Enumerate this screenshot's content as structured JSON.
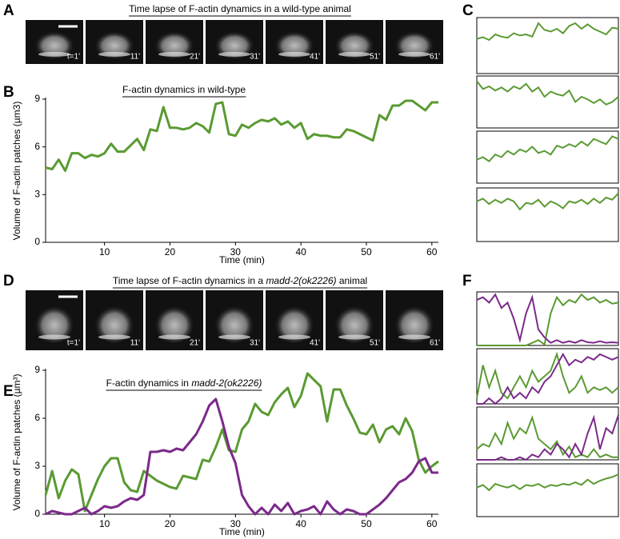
{
  "labels": [
    "A",
    "B",
    "C",
    "D",
    "E",
    "F"
  ],
  "strip_a": {
    "title": [
      "Time lapse of F-actin dynamics in a wild-type animal"
    ],
    "times": [
      "t=1'",
      "11'",
      "21'",
      "31'",
      "41'",
      "51'",
      "61'"
    ]
  },
  "strip_d": {
    "title": [
      "Time lapse of F-actin dynamics in a ",
      "madd-2(ok2226)",
      " animal"
    ],
    "times": [
      "t=1'",
      "11'",
      "21'",
      "31'",
      "41'",
      "51'",
      "61'"
    ]
  },
  "chart_data": [
    {
      "type": "line",
      "title": [
        "F-actin dynamics in wild-type"
      ],
      "xlabel": "Time (min)",
      "ylabel": "Volume of F-actin patches (µm3)",
      "x": [
        1,
        2,
        3,
        4,
        5,
        6,
        7,
        8,
        9,
        10,
        11,
        12,
        13,
        14,
        15,
        16,
        17,
        18,
        19,
        20,
        21,
        22,
        23,
        24,
        25,
        26,
        27,
        28,
        29,
        30,
        31,
        32,
        33,
        34,
        35,
        36,
        37,
        38,
        39,
        40,
        41,
        42,
        43,
        44,
        45,
        46,
        47,
        48,
        49,
        50,
        51,
        52,
        53,
        54,
        55,
        56,
        57,
        58,
        59,
        60,
        61
      ],
      "series": [
        {
          "color": "#5a9a32",
          "values": [
            4.7,
            4.6,
            5.2,
            4.5,
            5.6,
            5.6,
            5.3,
            5.5,
            5.4,
            5.6,
            6.2,
            5.7,
            5.7,
            6.1,
            6.5,
            5.8,
            7.1,
            7.0,
            8.5,
            7.2,
            7.2,
            7.1,
            7.2,
            7.5,
            7.3,
            6.9,
            8.7,
            8.8,
            6.8,
            6.7,
            7.4,
            7.2,
            7.5,
            7.7,
            7.6,
            7.8,
            7.4,
            7.6,
            7.2,
            7.5,
            6.5,
            6.8,
            6.7,
            6.7,
            6.6,
            6.6,
            7.1,
            7.0,
            6.8,
            6.6,
            6.4,
            8.0,
            7.7,
            8.6,
            8.6,
            8.9,
            8.9,
            8.6,
            8.3,
            8.8,
            8.8
          ]
        }
      ],
      "xlim": [
        1,
        61
      ],
      "xticks": [
        10,
        20,
        30,
        40,
        50,
        60
      ],
      "ylim": [
        0,
        9
      ],
      "yticks": [
        0,
        3,
        6,
        9
      ]
    },
    {
      "type": "line",
      "title": [
        "F-actin dynamics in ",
        "madd-2(ok2226)"
      ],
      "xlabel": "Time (min)",
      "ylabel": "Volume of F-actin patches (µm³)",
      "x": [
        1,
        2,
        3,
        4,
        5,
        6,
        7,
        8,
        9,
        10,
        11,
        12,
        13,
        14,
        15,
        16,
        17,
        18,
        19,
        20,
        21,
        22,
        23,
        24,
        25,
        26,
        27,
        28,
        29,
        30,
        31,
        32,
        33,
        34,
        35,
        36,
        37,
        38,
        39,
        40,
        41,
        42,
        43,
        44,
        45,
        46,
        47,
        48,
        49,
        50,
        51,
        52,
        53,
        54,
        55,
        56,
        57,
        58,
        59,
        60,
        61
      ],
      "series": [
        {
          "color": "#5a9a32",
          "values": [
            1.2,
            2.7,
            1.0,
            2.1,
            2.8,
            2.5,
            0.2,
            1.2,
            2.2,
            3.0,
            3.5,
            3.5,
            2.0,
            1.5,
            1.4,
            2.7,
            2.4,
            2.1,
            1.9,
            1.7,
            1.6,
            2.4,
            2.3,
            2.2,
            3.4,
            3.3,
            4.2,
            5.3,
            4.0,
            3.9,
            5.3,
            5.8,
            6.9,
            6.4,
            6.2,
            7.0,
            7.5,
            7.9,
            6.7,
            7.4,
            8.8,
            8.4,
            8.0,
            5.8,
            7.8,
            7.8,
            6.8,
            6.0,
            5.1,
            5.0,
            5.6,
            4.5,
            5.3,
            5.5,
            5.0,
            6.0,
            5.2,
            3.4,
            2.6,
            3.0,
            3.3
          ]
        },
        {
          "color": "#7b2a8a",
          "values": [
            0.0,
            0.2,
            0.1,
            0.0,
            0.0,
            0.2,
            0.4,
            0.0,
            0.2,
            0.5,
            0.4,
            0.5,
            0.8,
            1.0,
            0.9,
            1.2,
            3.9,
            3.9,
            4.0,
            3.9,
            4.1,
            4.0,
            4.5,
            5.0,
            5.8,
            6.8,
            7.2,
            5.8,
            4.2,
            3.2,
            1.2,
            0.5,
            0.0,
            0.4,
            0.0,
            0.6,
            0.2,
            0.7,
            0.0,
            0.2,
            0.3,
            0.5,
            0.0,
            0.8,
            0.3,
            0.0,
            0.3,
            0.2,
            0.0,
            0.0,
            0.3,
            0.6,
            1.0,
            1.5,
            2.0,
            2.2,
            2.6,
            3.3,
            3.5,
            2.6,
            2.6
          ]
        }
      ],
      "xlim": [
        1,
        61
      ],
      "xticks": [
        10,
        20,
        30,
        40,
        50,
        60
      ],
      "ylim": [
        0,
        9
      ],
      "yticks": [
        0,
        3,
        6,
        9
      ]
    },
    {
      "type": "mini",
      "ylim": [
        0,
        1
      ],
      "series": [
        {
          "color": "#5a9a32",
          "values": [
            0.62,
            0.65,
            0.6,
            0.7,
            0.66,
            0.64,
            0.72,
            0.68,
            0.7,
            0.66,
            0.9,
            0.78,
            0.75,
            0.8,
            0.72,
            0.85,
            0.9,
            0.8,
            0.88,
            0.8,
            0.75,
            0.7,
            0.82,
            0.8
          ]
        }
      ]
    },
    {
      "type": "mini",
      "ylim": [
        0,
        1
      ],
      "series": [
        {
          "color": "#5a9a32",
          "values": [
            0.9,
            0.75,
            0.8,
            0.72,
            0.78,
            0.7,
            0.8,
            0.75,
            0.85,
            0.7,
            0.78,
            0.6,
            0.7,
            0.65,
            0.62,
            0.72,
            0.5,
            0.6,
            0.55,
            0.48,
            0.55,
            0.45,
            0.5,
            0.6
          ]
        }
      ]
    },
    {
      "type": "mini",
      "ylim": [
        0,
        1
      ],
      "series": [
        {
          "color": "#5a9a32",
          "values": [
            0.45,
            0.5,
            0.42,
            0.55,
            0.5,
            0.62,
            0.55,
            0.65,
            0.6,
            0.7,
            0.58,
            0.62,
            0.55,
            0.72,
            0.68,
            0.75,
            0.7,
            0.8,
            0.72,
            0.85,
            0.8,
            0.75,
            0.9,
            0.85
          ]
        }
      ]
    },
    {
      "type": "mini",
      "ylim": [
        0,
        1
      ],
      "series": [
        {
          "color": "#5a9a32",
          "values": [
            0.75,
            0.8,
            0.7,
            0.78,
            0.72,
            0.8,
            0.75,
            0.6,
            0.72,
            0.7,
            0.78,
            0.65,
            0.75,
            0.7,
            0.62,
            0.75,
            0.72,
            0.78,
            0.7,
            0.8,
            0.72,
            0.82,
            0.78,
            0.9
          ]
        }
      ]
    },
    {
      "type": "mini",
      "ylim": [
        0,
        1
      ],
      "series": [
        {
          "color": "#5a9a32",
          "values": [
            0,
            0,
            0,
            0,
            0,
            0,
            0,
            0,
            0,
            0.05,
            0.1,
            0.02,
            0.6,
            0.9,
            0.75,
            0.85,
            0.8,
            0.95,
            0.85,
            0.9,
            0.8,
            0.85,
            0.78,
            0.8
          ]
        },
        {
          "color": "#7b2a8a",
          "values": [
            0.85,
            0.9,
            0.8,
            0.95,
            0.7,
            0.8,
            0.5,
            0.1,
            0.6,
            0.9,
            0.3,
            0.15,
            0.05,
            0.1,
            0.05,
            0.08,
            0.05,
            0.1,
            0.06,
            0.05,
            0.08,
            0.05,
            0.06,
            0.05
          ]
        }
      ]
    },
    {
      "type": "mini",
      "ylim": [
        0,
        1
      ],
      "series": [
        {
          "color": "#5a9a32",
          "values": [
            0.1,
            0.7,
            0.3,
            0.6,
            0.2,
            0.1,
            0.3,
            0.5,
            0.3,
            0.6,
            0.4,
            0.5,
            0.6,
            0.9,
            0.5,
            0.2,
            0.3,
            0.5,
            0.2,
            0.3,
            0.25,
            0.3,
            0.2,
            0.3
          ]
        },
        {
          "color": "#7b2a8a",
          "values": [
            0,
            0,
            0.1,
            0,
            0.1,
            0.3,
            0.1,
            0.2,
            0.1,
            0.3,
            0.2,
            0.4,
            0.5,
            0.7,
            0.9,
            0.7,
            0.8,
            0.75,
            0.85,
            0.8,
            0.9,
            0.85,
            0.8,
            0.85
          ]
        }
      ]
    },
    {
      "type": "mini",
      "ylim": [
        0,
        1
      ],
      "series": [
        {
          "color": "#5a9a32",
          "values": [
            0.2,
            0.3,
            0.25,
            0.5,
            0.3,
            0.7,
            0.4,
            0.6,
            0.5,
            0.8,
            0.4,
            0.3,
            0.2,
            0.35,
            0.1,
            0.25,
            0.05,
            0.1,
            0.05,
            0.2,
            0.05,
            0.1,
            0.05,
            0.05
          ]
        },
        {
          "color": "#7b2a8a",
          "values": [
            0,
            0,
            0,
            0,
            0.05,
            0,
            0,
            0.05,
            0,
            0.1,
            0.05,
            0.2,
            0.1,
            0.3,
            0.2,
            0.05,
            0.3,
            0.1,
            0.5,
            0.8,
            0.2,
            0.6,
            0.5,
            0.85
          ]
        }
      ]
    },
    {
      "type": "mini",
      "ylim": [
        0,
        1
      ],
      "series": [
        {
          "color": "#5a9a32",
          "values": [
            0.55,
            0.6,
            0.5,
            0.62,
            0.58,
            0.55,
            0.6,
            0.52,
            0.6,
            0.58,
            0.62,
            0.55,
            0.6,
            0.58,
            0.62,
            0.6,
            0.65,
            0.6,
            0.7,
            0.62,
            0.68,
            0.72,
            0.75,
            0.8
          ]
        }
      ]
    }
  ]
}
